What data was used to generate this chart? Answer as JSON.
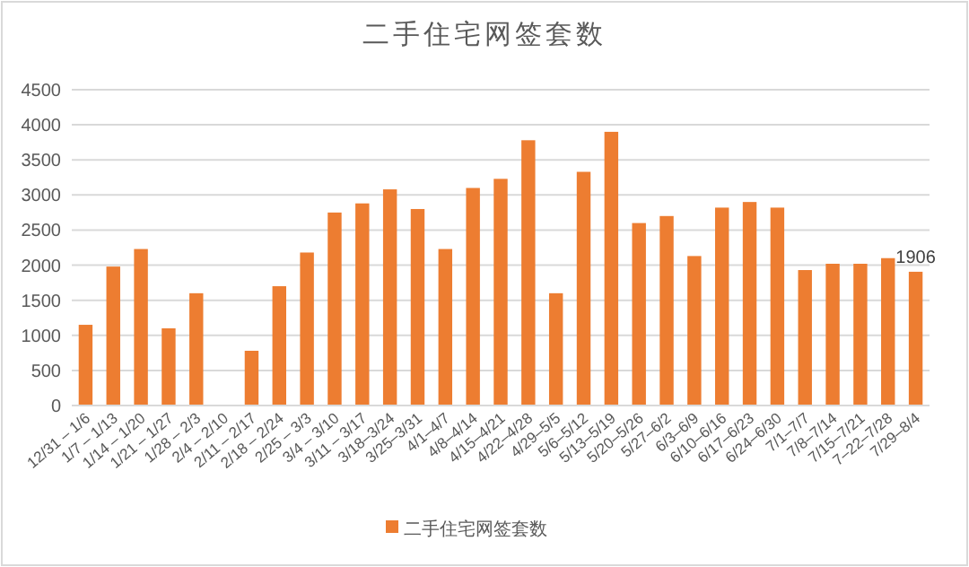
{
  "chart_data": {
    "type": "bar",
    "title": "二手住宅网签套数",
    "categories": [
      "12/31 – 1/6",
      "1/7 – 1/13",
      "1/14 – 1/20",
      "1/21 – 1/27",
      "1/28 – 2/3",
      "2/4 – 2/10",
      "2/11 – 2/17",
      "2/18 – 2/24",
      "2/25 – 3/3",
      "3/4 – 3/10",
      "3/11 – 3/17",
      "3/18–3/24",
      "3/25–3/31",
      "4/1–4/7",
      "4/8–4/14",
      "4/15–4/21",
      "4/22–4/28",
      "4/29–5/5",
      "5/6–5/12",
      "5/13–5/19",
      "5/20–5/26",
      "5/27–6/2",
      "6/3–6/9",
      "6/10–6/16",
      "6/17–6/23",
      "6/24–6/30",
      "7/1–7/7",
      "7/8–7/14",
      "7/15–7/21",
      "7–22–7/28",
      "7/29–8/4"
    ],
    "series": [
      {
        "name": "二手住宅网签套数",
        "color": "#ed7d31",
        "values": [
          1150,
          1980,
          2230,
          1100,
          1600,
          null,
          780,
          1700,
          2180,
          2750,
          2880,
          3080,
          2800,
          2230,
          3100,
          3230,
          3780,
          1600,
          3330,
          3900,
          2600,
          2700,
          2130,
          2820,
          2900,
          2820,
          1930,
          2020,
          2020,
          2100,
          1906
        ],
        "value_labels": [
          null,
          null,
          null,
          null,
          null,
          null,
          null,
          null,
          null,
          null,
          null,
          null,
          null,
          null,
          null,
          null,
          null,
          null,
          null,
          null,
          null,
          null,
          null,
          null,
          null,
          null,
          null,
          null,
          null,
          null,
          "1906"
        ]
      }
    ],
    "ylim": [
      0,
      4500
    ],
    "yticks": [
      0,
      500,
      1000,
      1500,
      2000,
      2500,
      3000,
      3500,
      4000,
      4500
    ],
    "grid": "y",
    "legend": "bottom"
  }
}
